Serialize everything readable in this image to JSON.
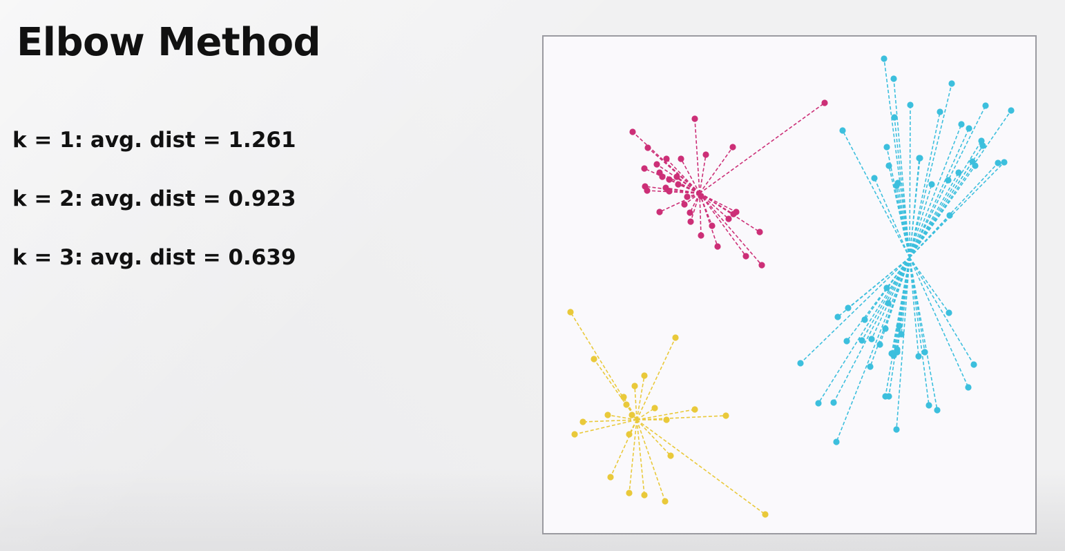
{
  "slide": {
    "title": "Elbow Method",
    "stats": [
      "k = 1: avg. dist = 1.261",
      "k = 2: avg. dist = 0.923",
      "k = 3: avg. dist = 0.639"
    ]
  },
  "clusters": [
    {
      "name": "magenta-cluster",
      "color": "#cc2f77",
      "center": [
        226,
        227
      ],
      "points": [
        [
          129,
          138
        ],
        [
          219,
          119
        ],
        [
          407,
          96
        ],
        [
          274,
          160
        ],
        [
          235,
          171
        ],
        [
          151,
          161
        ],
        [
          178,
          177
        ],
        [
          199,
          177
        ],
        [
          164,
          185
        ],
        [
          146,
          191
        ],
        [
          168,
          197
        ],
        [
          172,
          203
        ],
        [
          193,
          203
        ],
        [
          182,
          207
        ],
        [
          195,
          214
        ],
        [
          147,
          217
        ],
        [
          177,
          219
        ],
        [
          150,
          223
        ],
        [
          182,
          224
        ],
        [
          228,
          231
        ],
        [
          208,
          232
        ],
        [
          204,
          243
        ],
        [
          168,
          254
        ],
        [
          212,
          255
        ],
        [
          279,
          254
        ],
        [
          275,
          257
        ],
        [
          213,
          268
        ],
        [
          268,
          264
        ],
        [
          244,
          274
        ],
        [
          228,
          288
        ],
        [
          313,
          283
        ],
        [
          252,
          304
        ],
        [
          293,
          318
        ],
        [
          316,
          331
        ]
      ]
    },
    {
      "name": "cyan-cluster",
      "color": "#3cbfdd",
      "center": [
        530,
        320
      ],
      "points": [
        [
          493,
          32
        ],
        [
          507,
          61
        ],
        [
          591,
          68
        ],
        [
          677,
          107
        ],
        [
          640,
          100
        ],
        [
          531,
          99
        ],
        [
          574,
          109
        ],
        [
          508,
          117
        ],
        [
          433,
          136
        ],
        [
          605,
          127
        ],
        [
          616,
          133
        ],
        [
          497,
          160
        ],
        [
          634,
          151
        ],
        [
          500,
          187
        ],
        [
          636,
          158
        ],
        [
          545,
          176
        ],
        [
          621,
          181
        ],
        [
          667,
          182
        ],
        [
          658,
          183
        ],
        [
          513,
          212
        ],
        [
          625,
          187
        ],
        [
          601,
          197
        ],
        [
          544,
          176
        ],
        [
          511,
          216
        ],
        [
          586,
          208
        ],
        [
          479,
          205
        ],
        [
          562,
          214
        ],
        [
          588,
          259
        ],
        [
          497,
          364
        ],
        [
          426,
          406
        ],
        [
          441,
          393
        ],
        [
          465,
          410
        ],
        [
          499,
          386
        ],
        [
          495,
          423
        ],
        [
          587,
          400
        ],
        [
          515,
          419
        ],
        [
          439,
          441
        ],
        [
          487,
          446
        ],
        [
          461,
          440
        ],
        [
          475,
          438
        ],
        [
          512,
          453
        ],
        [
          507,
          462
        ],
        [
          552,
          457
        ],
        [
          512,
          457
        ],
        [
          518,
          431
        ],
        [
          543,
          463
        ],
        [
          623,
          475
        ],
        [
          473,
          478
        ],
        [
          504,
          459
        ],
        [
          615,
          508
        ],
        [
          372,
          473
        ],
        [
          398,
          531
        ],
        [
          420,
          530
        ],
        [
          495,
          521
        ],
        [
          500,
          521
        ],
        [
          558,
          534
        ],
        [
          570,
          541
        ],
        [
          424,
          587
        ],
        [
          511,
          569
        ]
      ]
    },
    {
      "name": "yellow-cluster",
      "color": "#e9c93a",
      "center": [
        135,
        555
      ],
      "points": [
        [
          39,
          399
        ],
        [
          191,
          436
        ],
        [
          73,
          467
        ],
        [
          146,
          491
        ],
        [
          132,
          506
        ],
        [
          116,
          522
        ],
        [
          120,
          533
        ],
        [
          161,
          538
        ],
        [
          219,
          540
        ],
        [
          264,
          549
        ],
        [
          57,
          558
        ],
        [
          93,
          548
        ],
        [
          128,
          548
        ],
        [
          178,
          555
        ],
        [
          45,
          576
        ],
        [
          124,
          576
        ],
        [
          184,
          607
        ],
        [
          97,
          638
        ],
        [
          124,
          661
        ],
        [
          146,
          664
        ],
        [
          176,
          673
        ],
        [
          321,
          692
        ]
      ]
    }
  ]
}
